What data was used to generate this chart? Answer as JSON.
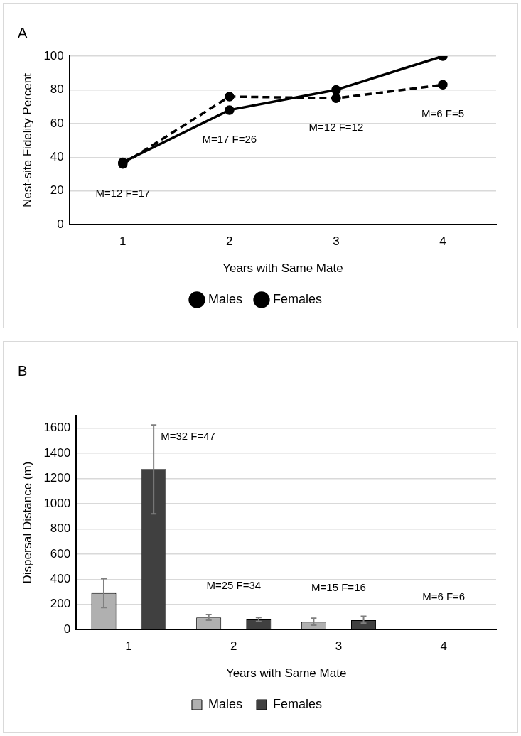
{
  "chart_data": [
    {
      "type": "line",
      "title": "A",
      "xlabel": "Years with Same Mate",
      "ylabel": "Nest-site Fidelity Percent",
      "categories": [
        "1",
        "2",
        "3",
        "4"
      ],
      "series": [
        {
          "name": "Males",
          "color": "#000000",
          "values": [
            37,
            68,
            80,
            100
          ],
          "line_style": "solid"
        },
        {
          "name": "Females",
          "color": "#000000",
          "values": [
            36,
            76,
            75,
            83
          ],
          "line_style": "dashed"
        }
      ],
      "ylim": [
        0,
        100
      ],
      "yticks": [
        0,
        20,
        40,
        60,
        80,
        100
      ],
      "grid": "y",
      "legend": "bottom",
      "marker": "circle",
      "annotations": [
        "M=12 F=17",
        "M=17 F=26",
        "M=12 F=12",
        "M=6 F=5"
      ]
    },
    {
      "type": "bar",
      "title": "B",
      "xlabel": "Years with Same Mate",
      "ylabel": "Dispersal Distance (m)",
      "categories": [
        "1",
        "2",
        "3",
        "4"
      ],
      "series": [
        {
          "name": "Males",
          "color": "#b0b0b0",
          "values": [
            290,
            95,
            60,
            null
          ],
          "errors": [
            [
              175,
              405
            ],
            [
              75,
              120
            ],
            [
              35,
              90
            ],
            null
          ]
        },
        {
          "name": "Females",
          "color": "#404040",
          "values": [
            1275,
            80,
            75,
            null
          ],
          "errors": [
            [
              920,
              1625
            ],
            [
              65,
              95
            ],
            [
              50,
              105
            ],
            null
          ]
        }
      ],
      "ylim": [
        0,
        1700
      ],
      "yticks": [
        0,
        200,
        400,
        600,
        800,
        1000,
        1200,
        1400,
        1600
      ],
      "grid": "y",
      "legend": "bottom",
      "annotations": [
        "M=32 F=47",
        "M=25 F=34",
        "M=15 F=16",
        "M=6 F=6"
      ]
    }
  ]
}
